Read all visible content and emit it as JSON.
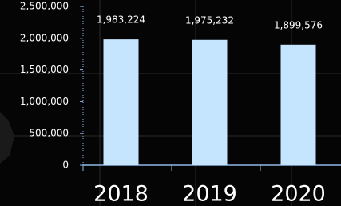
{
  "chart_data": {
    "type": "bar",
    "categories": [
      "2018",
      "2019",
      "2020"
    ],
    "values": [
      1983224,
      1975232,
      1899576
    ],
    "value_labels": [
      "1,983,224",
      "1,975,232",
      "1,899,576"
    ],
    "color": "#c5e5ff",
    "ylim": [
      0,
      2500000
    ],
    "yticks": [
      0,
      {
        "value": 500000,
        "label": "500,000"
      },
      {
        "value": 1000000,
        "label": "1,000,000"
      },
      {
        "value": 1500000,
        "label": "1,500,000"
      },
      {
        "value": 2000000,
        "label": "2,000,000"
      },
      {
        "value": 2500000,
        "label": "2,500,000"
      }
    ]
  }
}
